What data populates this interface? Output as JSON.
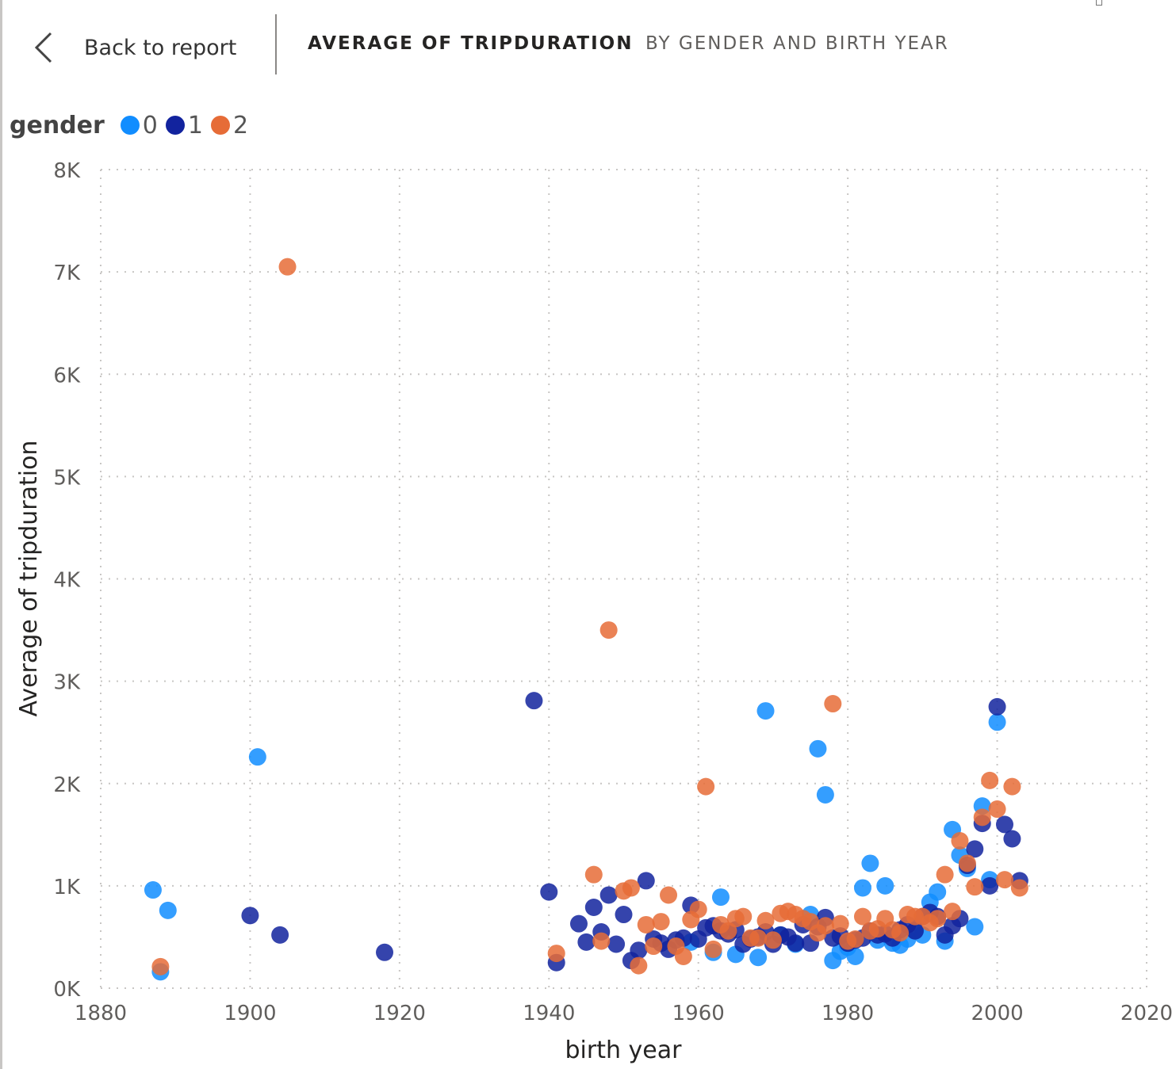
{
  "header": {
    "back_label": "Back to report",
    "title": "AVERAGE OF TRIPDURATION",
    "subtitle": "BY GENDER AND BIRTH YEAR"
  },
  "icons": {
    "back": "chevron-left-icon"
  },
  "colors": {
    "gender_0": "#118dff",
    "gender_1": "#12239e",
    "gender_2": "#e66c37",
    "grid": "#c8c6c4",
    "text": "#252423"
  },
  "legend": {
    "title": "gender",
    "items": [
      {
        "label": "0",
        "color": "#118dff"
      },
      {
        "label": "1",
        "color": "#12239e"
      },
      {
        "label": "2",
        "color": "#e66c37"
      }
    ]
  },
  "chart_data": {
    "type": "scatter",
    "title": "Average of tripduration by gender and birth year",
    "xlabel": "birth year",
    "ylabel": "Average of tripduration",
    "xlim": [
      1880,
      2020
    ],
    "ylim": [
      0,
      8000
    ],
    "xticks": [
      1880,
      1900,
      1920,
      1940,
      1960,
      1980,
      2000,
      2020
    ],
    "yticks": [
      0,
      1000,
      2000,
      3000,
      4000,
      5000,
      6000,
      7000,
      8000
    ],
    "ytick_labels": [
      "0K",
      "1K",
      "2K",
      "3K",
      "4K",
      "5K",
      "6K",
      "7K",
      "8K"
    ],
    "grid": true,
    "legend_position": "top-left",
    "series": [
      {
        "name": "0",
        "color": "#118dff",
        "points": [
          [
            1887,
            960
          ],
          [
            1888,
            160
          ],
          [
            1889,
            760
          ],
          [
            1901,
            2260
          ],
          [
            1959,
            450
          ],
          [
            1962,
            350
          ],
          [
            1963,
            890
          ],
          [
            1965,
            330
          ],
          [
            1968,
            300
          ],
          [
            1969,
            2710
          ],
          [
            1971,
            520
          ],
          [
            1973,
            430
          ],
          [
            1975,
            720
          ],
          [
            1976,
            2340
          ],
          [
            1977,
            1890
          ],
          [
            1978,
            270
          ],
          [
            1979,
            360
          ],
          [
            1980,
            400
          ],
          [
            1981,
            310
          ],
          [
            1982,
            980
          ],
          [
            1983,
            1220
          ],
          [
            1984,
            470
          ],
          [
            1985,
            1000
          ],
          [
            1986,
            440
          ],
          [
            1987,
            420
          ],
          [
            1988,
            480
          ],
          [
            1989,
            560
          ],
          [
            1990,
            520
          ],
          [
            1991,
            840
          ],
          [
            1992,
            940
          ],
          [
            1993,
            460
          ],
          [
            1994,
            1550
          ],
          [
            1995,
            1300
          ],
          [
            1996,
            1170
          ],
          [
            1997,
            600
          ],
          [
            1998,
            1780
          ],
          [
            1999,
            1060
          ],
          [
            2000,
            2600
          ]
        ]
      },
      {
        "name": "1",
        "color": "#12239e",
        "points": [
          [
            1900,
            710
          ],
          [
            1904,
            520
          ],
          [
            1918,
            350
          ],
          [
            1938,
            2810
          ],
          [
            1940,
            940
          ],
          [
            1941,
            250
          ],
          [
            1944,
            630
          ],
          [
            1945,
            450
          ],
          [
            1946,
            790
          ],
          [
            1947,
            550
          ],
          [
            1948,
            910
          ],
          [
            1949,
            430
          ],
          [
            1950,
            720
          ],
          [
            1951,
            270
          ],
          [
            1952,
            370
          ],
          [
            1953,
            1050
          ],
          [
            1954,
            480
          ],
          [
            1955,
            440
          ],
          [
            1956,
            380
          ],
          [
            1957,
            470
          ],
          [
            1958,
            490
          ],
          [
            1959,
            810
          ],
          [
            1960,
            480
          ],
          [
            1961,
            590
          ],
          [
            1962,
            610
          ],
          [
            1963,
            560
          ],
          [
            1964,
            530
          ],
          [
            1965,
            570
          ],
          [
            1966,
            430
          ],
          [
            1967,
            480
          ],
          [
            1968,
            500
          ],
          [
            1969,
            550
          ],
          [
            1970,
            430
          ],
          [
            1971,
            520
          ],
          [
            1972,
            500
          ],
          [
            1973,
            440
          ],
          [
            1974,
            620
          ],
          [
            1975,
            440
          ],
          [
            1976,
            600
          ],
          [
            1977,
            690
          ],
          [
            1978,
            490
          ],
          [
            1979,
            510
          ],
          [
            1980,
            440
          ],
          [
            1981,
            470
          ],
          [
            1982,
            490
          ],
          [
            1983,
            560
          ],
          [
            1984,
            520
          ],
          [
            1985,
            530
          ],
          [
            1986,
            490
          ],
          [
            1987,
            570
          ],
          [
            1988,
            620
          ],
          [
            1989,
            560
          ],
          [
            1990,
            700
          ],
          [
            1991,
            740
          ],
          [
            1992,
            700
          ],
          [
            1993,
            520
          ],
          [
            1994,
            610
          ],
          [
            1995,
            680
          ],
          [
            1996,
            1200
          ],
          [
            1997,
            1360
          ],
          [
            1998,
            1610
          ],
          [
            1999,
            1000
          ],
          [
            2000,
            2750
          ],
          [
            2001,
            1600
          ],
          [
            2002,
            1460
          ],
          [
            2003,
            1050
          ]
        ]
      },
      {
        "name": "2",
        "color": "#e66c37",
        "points": [
          [
            1888,
            210
          ],
          [
            1905,
            7050
          ],
          [
            1941,
            340
          ],
          [
            1946,
            1110
          ],
          [
            1947,
            460
          ],
          [
            1948,
            3500
          ],
          [
            1950,
            950
          ],
          [
            1951,
            980
          ],
          [
            1952,
            220
          ],
          [
            1953,
            620
          ],
          [
            1954,
            410
          ],
          [
            1955,
            650
          ],
          [
            1956,
            910
          ],
          [
            1957,
            410
          ],
          [
            1958,
            310
          ],
          [
            1959,
            670
          ],
          [
            1960,
            770
          ],
          [
            1961,
            1970
          ],
          [
            1962,
            380
          ],
          [
            1963,
            620
          ],
          [
            1964,
            560
          ],
          [
            1965,
            680
          ],
          [
            1966,
            700
          ],
          [
            1967,
            490
          ],
          [
            1968,
            490
          ],
          [
            1969,
            660
          ],
          [
            1970,
            470
          ],
          [
            1971,
            730
          ],
          [
            1972,
            750
          ],
          [
            1973,
            720
          ],
          [
            1974,
            680
          ],
          [
            1975,
            650
          ],
          [
            1976,
            540
          ],
          [
            1977,
            610
          ],
          [
            1978,
            2780
          ],
          [
            1979,
            630
          ],
          [
            1980,
            460
          ],
          [
            1981,
            480
          ],
          [
            1982,
            700
          ],
          [
            1983,
            560
          ],
          [
            1984,
            580
          ],
          [
            1985,
            680
          ],
          [
            1986,
            570
          ],
          [
            1987,
            540
          ],
          [
            1988,
            720
          ],
          [
            1989,
            700
          ],
          [
            1990,
            700
          ],
          [
            1991,
            640
          ],
          [
            1992,
            680
          ],
          [
            1993,
            1110
          ],
          [
            1994,
            750
          ],
          [
            1995,
            1440
          ],
          [
            1996,
            1220
          ],
          [
            1997,
            990
          ],
          [
            1998,
            1670
          ],
          [
            1999,
            2030
          ],
          [
            2000,
            1750
          ],
          [
            2001,
            1060
          ],
          [
            2002,
            1970
          ],
          [
            2003,
            980
          ]
        ]
      }
    ]
  }
}
